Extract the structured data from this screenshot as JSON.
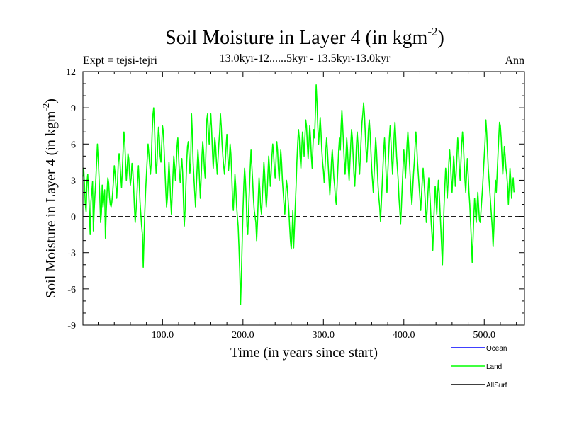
{
  "chart_data": {
    "type": "line",
    "title": "Soil Moisture in Layer 4 (in kgm",
    "title_sup": "-2",
    "title_close": ")",
    "subtitle": "13.0kyr-12......5kyr - 13.5kyr-13.0kyr",
    "expt_label": "Expt = tejsi-tejri",
    "season_label": "Ann",
    "xlabel": "Time (in years since start)",
    "ylabel": "Soil Moisture in Layer 4 (in kgm",
    "ylabel_sup": "-2",
    "ylabel_close": ")",
    "xlim": [
      1,
      550
    ],
    "ylim": [
      -9,
      12
    ],
    "x_ticks": [
      100,
      200,
      300,
      400,
      500
    ],
    "x_tick_labels": [
      "100.0",
      "200.0",
      "300.0",
      "400.0",
      "500.0"
    ],
    "y_ticks": [
      -9,
      -6,
      -3,
      0,
      3,
      6,
      9,
      12
    ],
    "y_tick_labels": [
      "-9",
      "-6",
      "-3",
      "0",
      "3",
      "6",
      "9",
      "12"
    ],
    "zero_line": 0,
    "legend": [
      {
        "name": "Ocean",
        "color": "#0000ff"
      },
      {
        "name": "Land",
        "color": "#00ff00"
      },
      {
        "name": "AllSurf",
        "color": "#000000"
      }
    ],
    "series": [
      {
        "name": "Land",
        "color": "#00ff00",
        "x_start": 1,
        "x_step": 1,
        "values": [
          3.3,
          4.0,
          2.5,
          1.0,
          0.4,
          2.8,
          3.5,
          2.2,
          0.5,
          -1.5,
          1.2,
          2.0,
          2.9,
          -1.2,
          0.5,
          1.8,
          3.0,
          4.5,
          6.0,
          4.8,
          3.3,
          1.5,
          -0.5,
          0.3,
          2.6,
          0.8,
          1.5,
          2.2,
          -1.8,
          0.4,
          2.0,
          3.2,
          2.8,
          1.6,
          1.0,
          0.8,
          1.2,
          2.0,
          3.0,
          4.2,
          3.6,
          2.5,
          1.5,
          2.8,
          4.5,
          5.2,
          4.6,
          3.3,
          2.4,
          3.8,
          5.5,
          7.0,
          6.2,
          4.5,
          3.0,
          4.0,
          5.2,
          4.8,
          3.5,
          2.6,
          3.2,
          4.4,
          3.8,
          2.5,
          0.8,
          -0.5,
          0.4,
          1.5,
          3.0,
          4.2,
          2.8,
          1.2,
          0.2,
          -0.8,
          -1.5,
          -4.2,
          -1.8,
          0.5,
          2.2,
          3.5,
          4.8,
          6.0,
          5.2,
          4.3,
          3.5,
          4.5,
          6.8,
          8.4,
          9.0,
          7.5,
          5.2,
          3.6,
          4.2,
          6.0,
          7.4,
          6.6,
          5.0,
          4.5,
          6.0,
          7.5,
          7.0,
          5.5,
          3.8,
          2.2,
          0.8,
          1.5,
          3.0,
          4.5,
          3.2,
          1.5,
          0.2,
          1.8,
          3.5,
          5.0,
          4.2,
          3.0,
          4.2,
          5.8,
          6.5,
          5.0,
          3.5,
          2.8,
          4.0,
          4.8,
          3.6,
          1.2,
          -0.8,
          0.5,
          2.5,
          4.5,
          5.8,
          6.2,
          5.0,
          3.6,
          4.4,
          8.5,
          7.0,
          4.5,
          3.2,
          2.0,
          0.8,
          2.5,
          4.0,
          5.5,
          4.5,
          3.0,
          1.5,
          3.2,
          5.0,
          6.2,
          5.4,
          4.0,
          3.2,
          5.5,
          8.0,
          8.5,
          7.0,
          6.0,
          7.5,
          8.5,
          7.2,
          5.5,
          4.0,
          5.2,
          6.5,
          5.8,
          4.5,
          3.5,
          4.8,
          6.0,
          7.0,
          8.5,
          7.5,
          6.0,
          5.0,
          4.2,
          3.5,
          4.5,
          5.8,
          6.8,
          5.2,
          3.8,
          4.6,
          6.0,
          5.2,
          3.5,
          1.5,
          0.5,
          2.0,
          3.5,
          2.5,
          1.0,
          0.0,
          -0.8,
          -2.5,
          -4.5,
          -7.3,
          -5.0,
          -2.2,
          0.5,
          2.5,
          4.0,
          3.0,
          1.5,
          -0.8,
          -1.5,
          0.5,
          2.2,
          4.0,
          5.5,
          4.2,
          3.0,
          1.5,
          0.5,
          0.0,
          -0.5,
          -2.0,
          -0.5,
          1.5,
          3.2,
          2.2,
          0.8,
          0.2,
          1.5,
          3.0,
          4.5,
          3.5,
          2.0,
          0.8,
          1.8,
          3.5,
          5.0,
          4.0,
          2.5,
          3.5,
          5.0,
          6.0,
          5.2,
          4.0,
          3.2,
          4.5,
          6.2,
          5.5,
          4.0,
          3.0,
          4.2,
          5.5,
          4.5,
          3.0,
          2.0,
          1.0,
          0.2,
          1.5,
          3.0,
          2.5,
          1.5,
          0.5,
          -0.8,
          -2.0,
          -2.7,
          -1.5,
          0.5,
          -2.6,
          -1.0,
          0.8,
          2.5,
          4.5,
          6.0,
          7.2,
          6.5,
          5.0,
          4.0,
          5.5,
          7.0,
          6.2,
          5.0,
          6.5,
          8.0,
          7.5,
          6.0,
          4.8,
          6.0,
          7.5,
          6.5,
          5.0,
          4.0,
          5.8,
          7.2,
          6.5,
          8.5,
          10.9,
          9.5,
          7.5,
          6.0,
          7.0,
          8.2,
          7.0,
          5.5,
          4.5,
          3.8,
          2.8,
          4.0,
          5.5,
          6.5,
          5.5,
          4.2,
          3.0,
          1.8,
          3.0,
          4.5,
          5.5,
          4.5,
          3.2,
          2.5,
          1.5,
          1.0,
          2.5,
          4.0,
          5.5,
          6.5,
          5.5,
          7.5,
          8.8,
          7.5,
          6.0,
          4.5,
          3.5,
          5.0,
          6.5,
          5.5,
          4.0,
          3.0,
          4.5,
          6.0,
          7.2,
          6.5,
          5.0,
          3.5,
          2.5,
          4.0,
          5.8,
          7.0,
          6.0,
          4.5,
          3.5,
          5.0,
          6.5,
          7.8,
          8.5,
          9.4,
          8.5,
          7.0,
          5.5,
          4.5,
          5.8,
          7.2,
          8.0,
          7.0,
          5.5,
          4.0,
          3.0,
          2.0,
          3.5,
          5.0,
          6.5,
          5.5,
          4.0,
          2.5,
          1.5,
          0.8,
          -0.4,
          1.0,
          2.5,
          4.0,
          5.5,
          6.5,
          5.0,
          3.5,
          2.0,
          3.5,
          5.0,
          6.5,
          7.5,
          6.2,
          4.8,
          3.5,
          5.0,
          6.8,
          7.8,
          6.5,
          5.0,
          4.0,
          3.0,
          1.5,
          0.5,
          -0.6,
          0.8,
          2.5,
          4.0,
          5.5,
          4.5,
          3.2,
          4.5,
          6.0,
          7.0,
          6.0,
          4.5,
          3.2,
          2.0,
          1.0,
          2.2,
          3.5,
          4.5,
          5.8,
          7.0,
          6.0,
          4.5,
          3.5,
          2.5,
          1.5,
          0.5,
          1.8,
          3.0,
          4.0,
          3.0,
          2.0,
          0.8,
          -0.5,
          0.5,
          2.0,
          3.2,
          2.2,
          1.0,
          -0.5,
          -1.5,
          -2.8,
          -0.8,
          1.0,
          2.5,
          1.5,
          0.2,
          1.8,
          3.0,
          2.0,
          0.5,
          -1.0,
          -2.5,
          -4.0,
          -1.5,
          0.8,
          2.5,
          4.0,
          3.0,
          1.5,
          2.8,
          4.5,
          5.5,
          4.5,
          3.0,
          2.0,
          3.5,
          5.0,
          4.0,
          2.5,
          3.5,
          5.0,
          6.5,
          5.5,
          4.0,
          3.0,
          4.5,
          6.0,
          7.0,
          6.0,
          4.5,
          3.0,
          2.0,
          3.5,
          4.8,
          3.5,
          2.0,
          1.0,
          -0.5,
          -2.0,
          -3.8,
          -2.0,
          0.0,
          1.5,
          0.5,
          -0.5,
          0.8,
          2.0,
          0.8,
          -0.3,
          -0.5,
          0.5,
          1.5,
          2.5,
          3.8,
          5.0,
          6.2,
          8.0,
          7.0,
          5.5,
          4.0,
          3.0,
          2.0,
          1.0,
          0.0,
          -1.0,
          -2.5,
          -1.0,
          1.5,
          3.0,
          2.0,
          3.5,
          5.0,
          6.5,
          7.8,
          7.5,
          6.5,
          5.0,
          3.5,
          4.5,
          5.8,
          5.0,
          4.0,
          3.5,
          2.5,
          1.0,
          2.5,
          4.0,
          3.0,
          1.5,
          2.5,
          3.2,
          2.0
        ]
      }
    ]
  }
}
